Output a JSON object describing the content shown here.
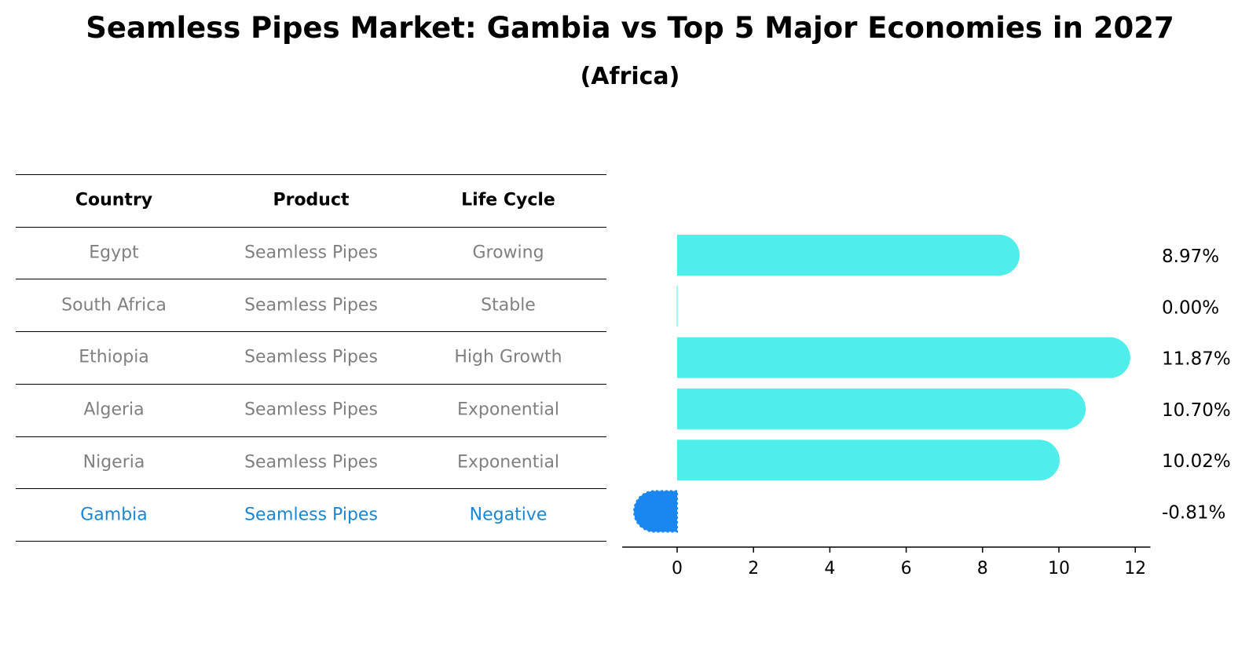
{
  "title": "Seamless Pipes Market: Gambia vs Top 5 Major Economies in 2027",
  "subtitle": "(Africa)",
  "table": {
    "headers": [
      "Country",
      "Product",
      "Life Cycle"
    ],
    "rows": [
      [
        "Egypt",
        "Seamless Pipes",
        "Growing"
      ],
      [
        "South Africa",
        "Seamless Pipes",
        "Stable"
      ],
      [
        "Ethiopia",
        "Seamless Pipes",
        "High Growth"
      ],
      [
        "Algeria",
        "Seamless Pipes",
        "Exponential"
      ],
      [
        "Nigeria",
        "Seamless Pipes",
        "Exponential"
      ],
      [
        "Gambia",
        "Seamless Pipes",
        "Negative"
      ]
    ],
    "highlight_row": 5
  },
  "colors": {
    "bar": "#4eeeea",
    "highlight_bar": "#1a87f0",
    "highlight_text": "#1a87d2",
    "row_text": "#808080"
  },
  "chart_data": {
    "type": "bar",
    "orientation": "horizontal",
    "categories": [
      "Egypt",
      "South Africa",
      "Ethiopia",
      "Algeria",
      "Nigeria",
      "Gambia"
    ],
    "values": [
      8.97,
      0.0,
      11.87,
      10.7,
      10.02,
      -0.81
    ],
    "value_labels": [
      "8.97%",
      "0.00%",
      "11.87%",
      "10.70%",
      "10.02%",
      "-0.81%"
    ],
    "xlim": [
      -1.5,
      12.5
    ],
    "xticks": [
      0,
      2,
      4,
      6,
      8,
      10,
      12
    ],
    "grid": false,
    "xlabel": "",
    "ylabel": ""
  }
}
